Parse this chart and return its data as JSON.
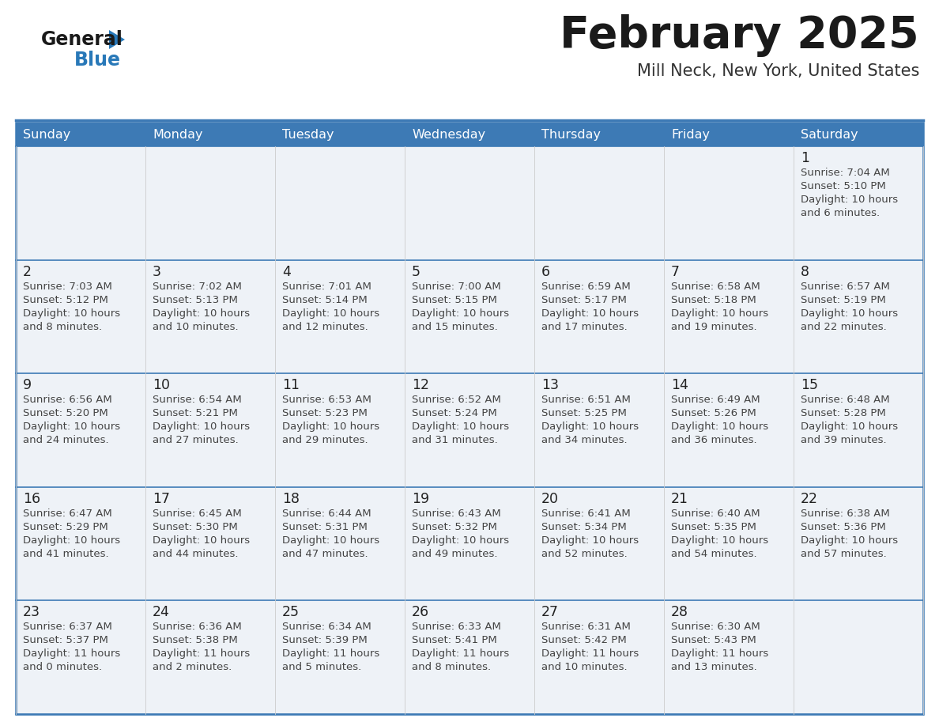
{
  "title": "February 2025",
  "subtitle": "Mill Neck, New York, United States",
  "days_of_week": [
    "Sunday",
    "Monday",
    "Tuesday",
    "Wednesday",
    "Thursday",
    "Friday",
    "Saturday"
  ],
  "header_bg": "#3d7ab5",
  "header_text": "#ffffff",
  "cell_bg_odd": "#eef2f7",
  "cell_bg_even": "#ffffff",
  "row_line_color": "#3d7ab5",
  "col_line_color": "#cccccc",
  "title_color": "#1a1a1a",
  "subtitle_color": "#333333",
  "day_number_color": "#222222",
  "info_text_color": "#444444",
  "logo_general_color": "#1a1a1a",
  "logo_blue_color": "#2878b8",
  "calendar_data": [
    {
      "day": 1,
      "row": 0,
      "col": 6,
      "sunrise": "7:04 AM",
      "sunset": "5:10 PM",
      "daylight_h": "10 hours",
      "daylight_m": "and 6 minutes."
    },
    {
      "day": 2,
      "row": 1,
      "col": 0,
      "sunrise": "7:03 AM",
      "sunset": "5:12 PM",
      "daylight_h": "10 hours",
      "daylight_m": "and 8 minutes."
    },
    {
      "day": 3,
      "row": 1,
      "col": 1,
      "sunrise": "7:02 AM",
      "sunset": "5:13 PM",
      "daylight_h": "10 hours",
      "daylight_m": "and 10 minutes."
    },
    {
      "day": 4,
      "row": 1,
      "col": 2,
      "sunrise": "7:01 AM",
      "sunset": "5:14 PM",
      "daylight_h": "10 hours",
      "daylight_m": "and 12 minutes."
    },
    {
      "day": 5,
      "row": 1,
      "col": 3,
      "sunrise": "7:00 AM",
      "sunset": "5:15 PM",
      "daylight_h": "10 hours",
      "daylight_m": "and 15 minutes."
    },
    {
      "day": 6,
      "row": 1,
      "col": 4,
      "sunrise": "6:59 AM",
      "sunset": "5:17 PM",
      "daylight_h": "10 hours",
      "daylight_m": "and 17 minutes."
    },
    {
      "day": 7,
      "row": 1,
      "col": 5,
      "sunrise": "6:58 AM",
      "sunset": "5:18 PM",
      "daylight_h": "10 hours",
      "daylight_m": "and 19 minutes."
    },
    {
      "day": 8,
      "row": 1,
      "col": 6,
      "sunrise": "6:57 AM",
      "sunset": "5:19 PM",
      "daylight_h": "10 hours",
      "daylight_m": "and 22 minutes."
    },
    {
      "day": 9,
      "row": 2,
      "col": 0,
      "sunrise": "6:56 AM",
      "sunset": "5:20 PM",
      "daylight_h": "10 hours",
      "daylight_m": "and 24 minutes."
    },
    {
      "day": 10,
      "row": 2,
      "col": 1,
      "sunrise": "6:54 AM",
      "sunset": "5:21 PM",
      "daylight_h": "10 hours",
      "daylight_m": "and 27 minutes."
    },
    {
      "day": 11,
      "row": 2,
      "col": 2,
      "sunrise": "6:53 AM",
      "sunset": "5:23 PM",
      "daylight_h": "10 hours",
      "daylight_m": "and 29 minutes."
    },
    {
      "day": 12,
      "row": 2,
      "col": 3,
      "sunrise": "6:52 AM",
      "sunset": "5:24 PM",
      "daylight_h": "10 hours",
      "daylight_m": "and 31 minutes."
    },
    {
      "day": 13,
      "row": 2,
      "col": 4,
      "sunrise": "6:51 AM",
      "sunset": "5:25 PM",
      "daylight_h": "10 hours",
      "daylight_m": "and 34 minutes."
    },
    {
      "day": 14,
      "row": 2,
      "col": 5,
      "sunrise": "6:49 AM",
      "sunset": "5:26 PM",
      "daylight_h": "10 hours",
      "daylight_m": "and 36 minutes."
    },
    {
      "day": 15,
      "row": 2,
      "col": 6,
      "sunrise": "6:48 AM",
      "sunset": "5:28 PM",
      "daylight_h": "10 hours",
      "daylight_m": "and 39 minutes."
    },
    {
      "day": 16,
      "row": 3,
      "col": 0,
      "sunrise": "6:47 AM",
      "sunset": "5:29 PM",
      "daylight_h": "10 hours",
      "daylight_m": "and 41 minutes."
    },
    {
      "day": 17,
      "row": 3,
      "col": 1,
      "sunrise": "6:45 AM",
      "sunset": "5:30 PM",
      "daylight_h": "10 hours",
      "daylight_m": "and 44 minutes."
    },
    {
      "day": 18,
      "row": 3,
      "col": 2,
      "sunrise": "6:44 AM",
      "sunset": "5:31 PM",
      "daylight_h": "10 hours",
      "daylight_m": "and 47 minutes."
    },
    {
      "day": 19,
      "row": 3,
      "col": 3,
      "sunrise": "6:43 AM",
      "sunset": "5:32 PM",
      "daylight_h": "10 hours",
      "daylight_m": "and 49 minutes."
    },
    {
      "day": 20,
      "row": 3,
      "col": 4,
      "sunrise": "6:41 AM",
      "sunset": "5:34 PM",
      "daylight_h": "10 hours",
      "daylight_m": "and 52 minutes."
    },
    {
      "day": 21,
      "row": 3,
      "col": 5,
      "sunrise": "6:40 AM",
      "sunset": "5:35 PM",
      "daylight_h": "10 hours",
      "daylight_m": "and 54 minutes."
    },
    {
      "day": 22,
      "row": 3,
      "col": 6,
      "sunrise": "6:38 AM",
      "sunset": "5:36 PM",
      "daylight_h": "10 hours",
      "daylight_m": "and 57 minutes."
    },
    {
      "day": 23,
      "row": 4,
      "col": 0,
      "sunrise": "6:37 AM",
      "sunset": "5:37 PM",
      "daylight_h": "11 hours",
      "daylight_m": "and 0 minutes."
    },
    {
      "day": 24,
      "row": 4,
      "col": 1,
      "sunrise": "6:36 AM",
      "sunset": "5:38 PM",
      "daylight_h": "11 hours",
      "daylight_m": "and 2 minutes."
    },
    {
      "day": 25,
      "row": 4,
      "col": 2,
      "sunrise": "6:34 AM",
      "sunset": "5:39 PM",
      "daylight_h": "11 hours",
      "daylight_m": "and 5 minutes."
    },
    {
      "day": 26,
      "row": 4,
      "col": 3,
      "sunrise": "6:33 AM",
      "sunset": "5:41 PM",
      "daylight_h": "11 hours",
      "daylight_m": "and 8 minutes."
    },
    {
      "day": 27,
      "row": 4,
      "col": 4,
      "sunrise": "6:31 AM",
      "sunset": "5:42 PM",
      "daylight_h": "11 hours",
      "daylight_m": "and 10 minutes."
    },
    {
      "day": 28,
      "row": 4,
      "col": 5,
      "sunrise": "6:30 AM",
      "sunset": "5:43 PM",
      "daylight_h": "11 hours",
      "daylight_m": "and 13 minutes."
    }
  ],
  "num_rows": 5,
  "figsize": [
    11.88,
    9.18
  ],
  "dpi": 100
}
